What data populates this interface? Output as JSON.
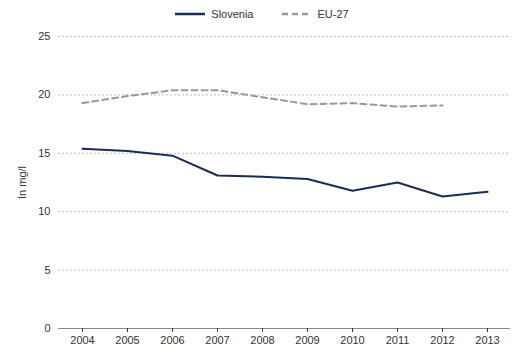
{
  "chart_data": {
    "type": "line",
    "y_label": "In mg/l",
    "categories": [
      "2004",
      "2005",
      "2006",
      "2007",
      "2008",
      "2009",
      "2010",
      "2011",
      "2012",
      "2013"
    ],
    "series": [
      {
        "name": "Slovenia",
        "color": "#1b2a5c",
        "line_style": "solid",
        "values": [
          15.4,
          15.2,
          14.8,
          13.1,
          13.0,
          12.8,
          11.8,
          12.5,
          11.3,
          11.7
        ]
      },
      {
        "name": "EU-27",
        "color": "#999999",
        "line_style": "dashed",
        "values": [
          19.3,
          19.9,
          20.4,
          20.4,
          19.8,
          19.2,
          19.3,
          19.0,
          19.1,
          null
        ]
      }
    ],
    "ylim": [
      0,
      25
    ],
    "yticks": [
      0,
      5,
      10,
      15,
      20,
      25
    ],
    "grid": true,
    "legend": "top"
  }
}
